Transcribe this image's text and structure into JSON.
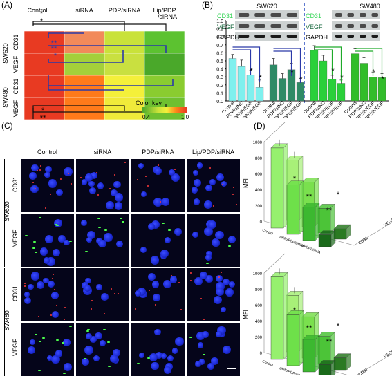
{
  "panelA": {
    "label": "(A)",
    "columns": [
      "Control",
      "siRNA",
      "PDP/siRNA",
      "Lip/PDP\n/siRNA"
    ],
    "col_line1": [
      "Control",
      "siRNA",
      "PDP/siRNA",
      "Lip/PDP"
    ],
    "col_line2": [
      "",
      "",
      "",
      "/siRNA"
    ],
    "row_groups": [
      "SW620",
      "SW480"
    ],
    "rows": [
      "CD31",
      "VEGF",
      "CD31",
      "VEGF"
    ],
    "color_key_label": "Color key",
    "color_key_min": "0.4",
    "color_key_max": "1.0",
    "colors": [
      [
        "#e83a22",
        "#f28a5a",
        "#c9e23a",
        "#5cc230"
      ],
      [
        "#e83a22",
        "#a4d03a",
        "#c9e040",
        "#4aa82a"
      ],
      [
        "#e83a22",
        "#ff7a1a",
        "#f4f03a",
        "#8acc30"
      ],
      [
        "#e83a22",
        "#ff7a1a",
        "#f0ea3a",
        "#6fc030"
      ]
    ],
    "sig_top": [
      "*",
      "*",
      "**",
      "**",
      "*"
    ],
    "sig_bottom": [
      "*",
      "**"
    ]
  },
  "panelB": {
    "label": "(B)",
    "blots_left_title": "SW620",
    "blots_right_title": "SW480",
    "blot_labels": [
      "CD31",
      "VEGF",
      "GAPDH"
    ],
    "y_ticks": [
      "0.0",
      "0.1",
      "0.2",
      "0.3",
      "0.4",
      "0.5",
      "0.6",
      "0.7",
      "0.8",
      "0.9",
      "1.0"
    ],
    "groups_x": [
      "Control",
      "PDP/siNC",
      "PDP/siVEGF",
      "Lip/PDP/siVEGF"
    ],
    "star": "*"
  },
  "panelC": {
    "label": "(C)",
    "columns": [
      "Control",
      "siRNA",
      "PDP/siRNA",
      "Lip/PDP/siRNA"
    ],
    "row_groups": [
      "SW620",
      "SW480"
    ],
    "rows": [
      "CD31",
      "VEGF",
      "CD31",
      "VEGF"
    ]
  },
  "panelD": {
    "label": "(D)",
    "y_axis_label": "MFI",
    "y_ticks": [
      "0",
      "200",
      "400",
      "600",
      "800",
      "1000"
    ],
    "x_groups": [
      "Control",
      "siRNA",
      "PDP/siRNA",
      "Lip/PDP/siRNA"
    ],
    "depth_labels": [
      "CD31",
      "VEGF"
    ],
    "sig_marks": [
      "*",
      "**",
      "*",
      "**",
      "*",
      "**",
      "*",
      "**"
    ]
  },
  "chart_data": [
    {
      "type": "heatmap",
      "panel": "A",
      "x": [
        "Control",
        "siRNA",
        "PDP/siRNA",
        "Lip/PDP/siRNA"
      ],
      "y": [
        "SW620 CD31",
        "SW620 VEGF",
        "SW480 CD31",
        "SW480 VEGF"
      ],
      "values": [
        [
          1.0,
          0.9,
          0.62,
          0.48
        ],
        [
          1.0,
          0.55,
          0.6,
          0.43
        ],
        [
          1.0,
          0.88,
          0.7,
          0.5
        ],
        [
          1.0,
          0.88,
          0.7,
          0.48
        ]
      ],
      "color_scale": [
        0.4,
        1.0
      ]
    },
    {
      "type": "bar",
      "panel": "B",
      "categories": [
        "Control",
        "PDP/siNC",
        "PDP/siVEGF",
        "Lip/PDP/siVEGF"
      ],
      "series": [
        {
          "name": "CD31",
          "values": [
            0.53,
            0.43,
            0.32,
            0.17
          ]
        },
        {
          "name": "VEGF",
          "values": [
            0.45,
            0.28,
            0.39,
            0.23
          ]
        },
        {
          "name": "CD31",
          "values": [
            0.63,
            0.5,
            0.27,
            0.22
          ]
        },
        {
          "name": "VEGF",
          "values": [
            0.59,
            0.47,
            0.3,
            0.29
          ]
        }
      ],
      "errors": [
        [
          0.05,
          0.08,
          0.06,
          0.09
        ],
        [
          0.08,
          0.06,
          0.08,
          0.05
        ],
        [
          0.06,
          0.07,
          0.05,
          0.04
        ],
        [
          0.06,
          0.07,
          0.06,
          0.05
        ]
      ],
      "ylim": [
        0.0,
        1.0
      ]
    },
    {
      "type": "bar",
      "panel": "D-top",
      "categories": [
        "Control",
        "siRNA",
        "PDP/siRNA",
        "Lip/PDP/siRNA"
      ],
      "series": [
        {
          "name": "CD31",
          "values": [
            1010,
            620,
            420,
            150
          ]
        },
        {
          "name": "VEGF",
          "values": [
            760,
            560,
            310,
            130
          ]
        }
      ],
      "ylim": [
        0,
        1000
      ]
    },
    {
      "type": "bar",
      "panel": "D-bottom",
      "categories": [
        "Control",
        "siRNA",
        "PDP/siRNA",
        "Lip/PDP/siRNA"
      ],
      "series": [
        {
          "name": "CD31",
          "values": [
            1040,
            640,
            410,
            170
          ]
        },
        {
          "name": "VEGF",
          "values": [
            710,
            520,
            350,
            160
          ]
        }
      ],
      "ylim": [
        0,
        1000
      ]
    }
  ]
}
